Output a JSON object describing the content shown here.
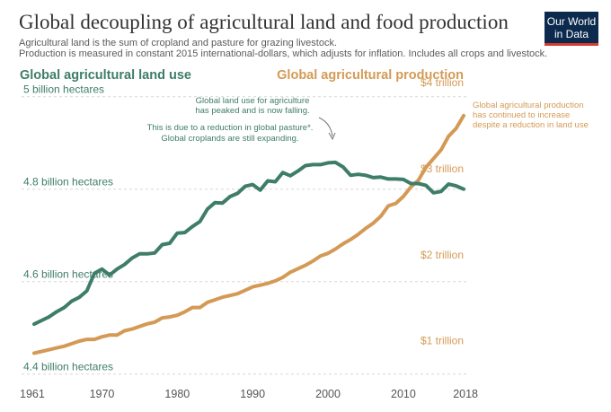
{
  "chart_data": {
    "type": "line",
    "title": "Global decoupling of agricultural land and food production",
    "subtitle_lines": [
      "Agricultural land is the sum of cropland and pasture for grazing livestock.",
      "Production is measured in constant 2015 international-dollars, which adjusts for inflation. Includes all crops and livestock."
    ],
    "logo": {
      "line1": "Our World",
      "line2": "in Data"
    },
    "colors": {
      "land": "#3e7d6a",
      "production": "#d49a55",
      "logo_bg": "#0c2a4d",
      "logo_bar": "#d63a2f",
      "grid": "#d7d7d7"
    },
    "x": [
      1961,
      1962,
      1963,
      1964,
      1965,
      1966,
      1967,
      1968,
      1969,
      1970,
      1971,
      1972,
      1973,
      1974,
      1975,
      1976,
      1977,
      1978,
      1979,
      1980,
      1981,
      1982,
      1983,
      1984,
      1985,
      1986,
      1987,
      1988,
      1989,
      1990,
      1991,
      1992,
      1993,
      1994,
      1995,
      1996,
      1997,
      1998,
      1999,
      2000,
      2001,
      2002,
      2003,
      2004,
      2005,
      2006,
      2007,
      2008,
      2009,
      2010,
      2011,
      2012,
      2013,
      2014,
      2015,
      2016,
      2017,
      2018
    ],
    "xticks": [
      "1961",
      "1970",
      "1980",
      "1990",
      "2000",
      "2010",
      "2018"
    ],
    "series": [
      {
        "name": "Global agricultural land use",
        "axis": "left",
        "unit": "billion hectares",
        "values": [
          4.508,
          4.516,
          4.524,
          4.535,
          4.544,
          4.558,
          4.566,
          4.58,
          4.618,
          4.627,
          4.614,
          4.627,
          4.637,
          4.651,
          4.66,
          4.66,
          4.662,
          4.68,
          4.683,
          4.705,
          4.706,
          4.719,
          4.73,
          4.757,
          4.771,
          4.77,
          4.784,
          4.791,
          4.806,
          4.81,
          4.798,
          4.818,
          4.816,
          4.836,
          4.829,
          4.839,
          4.851,
          4.853,
          4.853,
          4.857,
          4.858,
          4.848,
          4.83,
          4.832,
          4.83,
          4.825,
          4.826,
          4.822,
          4.822,
          4.821,
          4.812,
          4.812,
          4.808,
          4.792,
          4.795,
          4.811,
          4.807,
          4.8
        ]
      },
      {
        "name": "Global agricultural production",
        "axis": "right",
        "unit": "trillion",
        "values": [
          0.94,
          0.96,
          0.98,
          1.0,
          1.02,
          1.05,
          1.08,
          1.1,
          1.1,
          1.13,
          1.15,
          1.15,
          1.2,
          1.22,
          1.25,
          1.28,
          1.3,
          1.35,
          1.36,
          1.38,
          1.42,
          1.47,
          1.47,
          1.53,
          1.56,
          1.59,
          1.61,
          1.63,
          1.67,
          1.71,
          1.73,
          1.75,
          1.78,
          1.82,
          1.88,
          1.92,
          1.96,
          2.01,
          2.07,
          2.1,
          2.15,
          2.21,
          2.26,
          2.32,
          2.39,
          2.45,
          2.53,
          2.65,
          2.68,
          2.76,
          2.87,
          2.95,
          3.1,
          3.2,
          3.3,
          3.46,
          3.55,
          3.7
        ]
      }
    ],
    "left_axis": {
      "label": "Global agricultural land use",
      "ylim": [
        4.382,
        5.015
      ],
      "ticks": [
        {
          "value": 5.0,
          "label": "5 billion hectares"
        },
        {
          "value": 4.8,
          "label": "4.8 billion hectares"
        },
        {
          "value": 4.6,
          "label": "4.6 billion hectares"
        },
        {
          "value": 4.4,
          "label": "4.4 billion hectares"
        }
      ]
    },
    "right_axis": {
      "label": "Global agricultural production",
      "ylim": [
        0.6,
        4.0
      ],
      "ticks": [
        {
          "value": 4.0,
          "label": "$4 trillion"
        },
        {
          "value": 3.0,
          "label": "$3 trillion"
        },
        {
          "value": 2.0,
          "label": "$2 trillion"
        },
        {
          "value": 1.0,
          "label": "$1 trillion"
        }
      ]
    },
    "annotations": {
      "land_peak": [
        "Global land use for agriculture",
        "has peaked and is now falling."
      ],
      "pasture": [
        "This is due to a reduction in global pasture*.",
        "Global croplands are still expanding."
      ],
      "production": [
        "Global agricultural production",
        "has continued to increase",
        "despite a reduction in land use"
      ]
    },
    "grid": true
  }
}
